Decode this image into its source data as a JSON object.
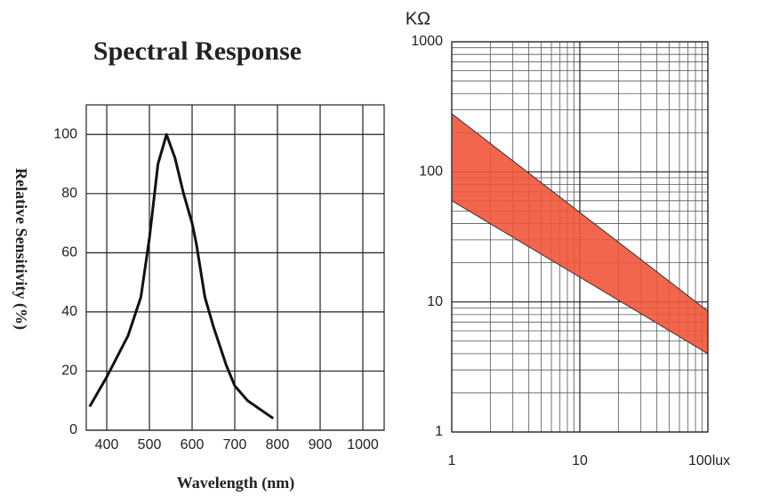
{
  "chart_data": [
    {
      "type": "line",
      "title": "Spectral Response",
      "x_label": "Wavelength (nm)",
      "y_label": "Relative Sensitivity (%)",
      "x": [
        360,
        400,
        450,
        480,
        500,
        520,
        540,
        560,
        580,
        600,
        610,
        630,
        650,
        680,
        700,
        730,
        790
      ],
      "series": [
        {
          "color": "#111111",
          "values": [
            8,
            18,
            32,
            45,
            65,
            90,
            100,
            92,
            80,
            70,
            63,
            45,
            35,
            22,
            15,
            10,
            4
          ]
        }
      ],
      "xlim": [
        352,
        1050
      ],
      "xticks": [
        400,
        500,
        600,
        700,
        800,
        900,
        1000
      ],
      "ylim": [
        0,
        110
      ],
      "yticks": [
        0,
        20,
        40,
        60,
        80,
        100
      ],
      "grid": true
    },
    {
      "type": "band",
      "y_label": "KΩ",
      "log_x": true,
      "log_y": true,
      "minor_grid": true,
      "color": "#f0553a",
      "x": [
        1,
        100
      ],
      "series": [
        {
          "values": [
            280,
            8.5
          ]
        },
        {
          "values": [
            60,
            4
          ]
        }
      ],
      "xlim": [
        1,
        100
      ],
      "xticks": [
        1,
        10,
        {
          "value": 100,
          "label": "100lux"
        }
      ],
      "ylim": [
        1,
        1000
      ],
      "yticks": [
        1,
        10,
        100,
        1000
      ],
      "grid": true
    }
  ]
}
